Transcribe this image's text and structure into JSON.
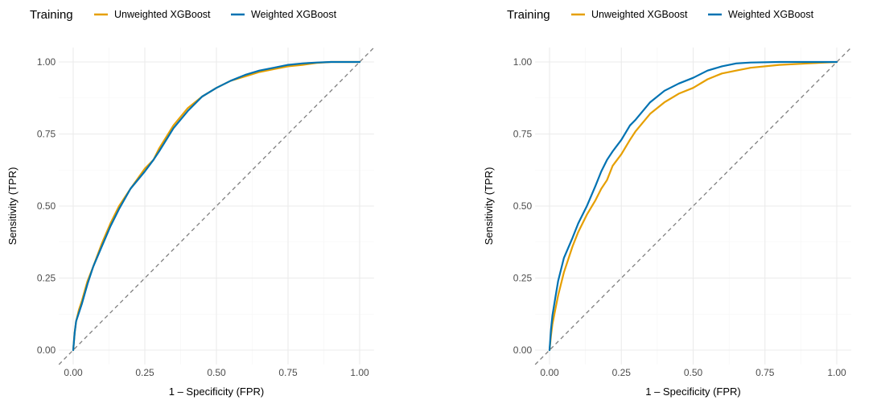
{
  "colors": {
    "unweighted": "#E69F00",
    "weighted": "#0072B2",
    "diagonal": "#7f7f7f",
    "grid_major": "#ebebeb",
    "grid_minor": "#f5f5f5"
  },
  "chart_data": [
    {
      "type": "line",
      "legend": {
        "title": "Training",
        "position": "top-left",
        "entries": [
          "Unweighted XGBoost",
          "Weighted XGBoost"
        ]
      },
      "xlabel": "1 – Specificity (FPR)",
      "ylabel": "Sensitivity (TPR)",
      "xlim": [
        0,
        1
      ],
      "ylim": [
        0,
        1
      ],
      "xticks": [
        "0.00",
        "0.25",
        "0.50",
        "0.75",
        "1.00"
      ],
      "yticks": [
        "0.00",
        "0.25",
        "0.50",
        "0.75",
        "1.00"
      ],
      "grid": true,
      "reference_line": "diagonal dashed",
      "series": [
        {
          "name": "Unweighted XGBoost",
          "color_key": "unweighted",
          "x": [
            0,
            0.005,
            0.01,
            0.02,
            0.03,
            0.05,
            0.07,
            0.1,
            0.13,
            0.16,
            0.2,
            0.25,
            0.28,
            0.3,
            0.35,
            0.4,
            0.45,
            0.5,
            0.55,
            0.6,
            0.65,
            0.7,
            0.75,
            0.8,
            0.85,
            0.9,
            1.0
          ],
          "y": [
            0,
            0.06,
            0.1,
            0.14,
            0.17,
            0.24,
            0.29,
            0.37,
            0.44,
            0.5,
            0.56,
            0.63,
            0.66,
            0.7,
            0.78,
            0.84,
            0.88,
            0.91,
            0.935,
            0.95,
            0.965,
            0.975,
            0.985,
            0.99,
            0.997,
            1.0,
            1.0
          ]
        },
        {
          "name": "Weighted XGBoost",
          "color_key": "weighted",
          "x": [
            0,
            0.005,
            0.01,
            0.02,
            0.03,
            0.05,
            0.07,
            0.1,
            0.13,
            0.16,
            0.2,
            0.25,
            0.28,
            0.3,
            0.35,
            0.4,
            0.45,
            0.5,
            0.55,
            0.6,
            0.65,
            0.7,
            0.75,
            0.8,
            0.85,
            0.9,
            1.0
          ],
          "y": [
            0,
            0.06,
            0.1,
            0.13,
            0.16,
            0.23,
            0.29,
            0.36,
            0.43,
            0.49,
            0.56,
            0.62,
            0.66,
            0.69,
            0.77,
            0.83,
            0.88,
            0.91,
            0.935,
            0.955,
            0.97,
            0.98,
            0.99,
            0.995,
            0.998,
            1.0,
            1.0
          ]
        }
      ]
    },
    {
      "type": "line",
      "legend": {
        "title": "Training",
        "position": "top-left",
        "entries": [
          "Unweighted XGBoost",
          "Weighted XGBoost"
        ]
      },
      "xlabel": "1 – Specificity (FPR)",
      "ylabel": "Sensitivity (TPR)",
      "xlim": [
        0,
        1
      ],
      "ylim": [
        0,
        1
      ],
      "xticks": [
        "0.00",
        "0.25",
        "0.50",
        "0.75",
        "1.00"
      ],
      "yticks": [
        "0.00",
        "0.25",
        "0.50",
        "0.75",
        "1.00"
      ],
      "grid": true,
      "reference_line": "diagonal dashed",
      "series": [
        {
          "name": "Unweighted XGBoost",
          "color_key": "unweighted",
          "x": [
            0,
            0.005,
            0.01,
            0.02,
            0.03,
            0.05,
            0.08,
            0.1,
            0.13,
            0.16,
            0.18,
            0.2,
            0.22,
            0.25,
            0.28,
            0.3,
            0.35,
            0.4,
            0.45,
            0.5,
            0.55,
            0.6,
            0.65,
            0.7,
            0.8,
            0.9,
            1.0
          ],
          "y": [
            0,
            0.05,
            0.09,
            0.14,
            0.19,
            0.27,
            0.36,
            0.41,
            0.47,
            0.52,
            0.56,
            0.59,
            0.64,
            0.68,
            0.73,
            0.76,
            0.82,
            0.86,
            0.89,
            0.91,
            0.94,
            0.96,
            0.97,
            0.98,
            0.99,
            0.995,
            1.0
          ]
        },
        {
          "name": "Weighted XGBoost",
          "color_key": "weighted",
          "x": [
            0,
            0.005,
            0.01,
            0.02,
            0.03,
            0.05,
            0.08,
            0.1,
            0.13,
            0.16,
            0.18,
            0.2,
            0.22,
            0.25,
            0.28,
            0.3,
            0.35,
            0.4,
            0.45,
            0.5,
            0.55,
            0.6,
            0.65,
            0.7,
            0.8,
            0.9,
            1.0
          ],
          "y": [
            0,
            0.07,
            0.12,
            0.18,
            0.24,
            0.32,
            0.39,
            0.44,
            0.5,
            0.57,
            0.62,
            0.66,
            0.69,
            0.73,
            0.78,
            0.8,
            0.86,
            0.9,
            0.925,
            0.945,
            0.97,
            0.985,
            0.995,
            0.998,
            1.0,
            1.0,
            1.0
          ]
        }
      ]
    }
  ]
}
